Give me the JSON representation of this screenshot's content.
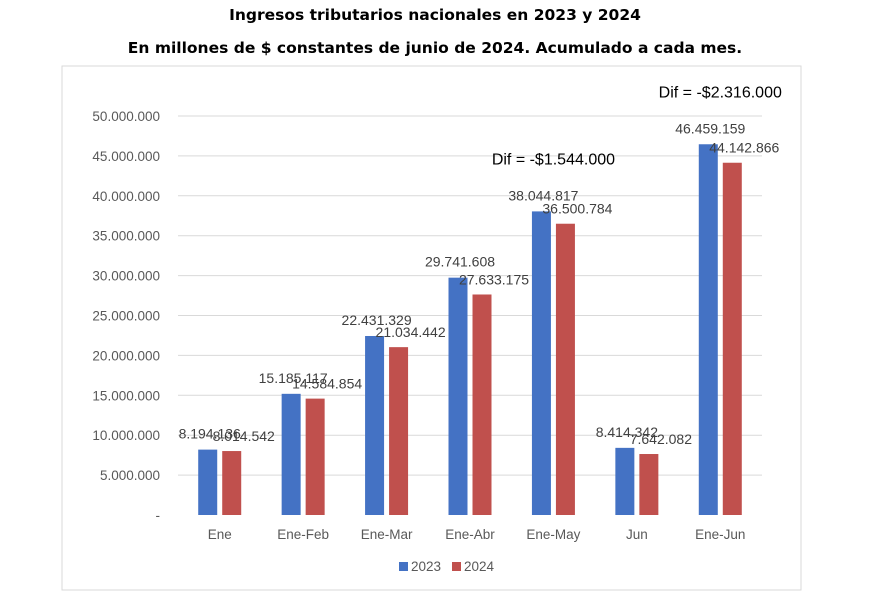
{
  "chart_data": {
    "type": "bar",
    "title": "Ingresos tributarios nacionales en 2023 y 2024",
    "subtitle": "En millones de $ constantes de junio de 2024. Acumulado a cada mes.",
    "xlabel": "",
    "ylabel": "",
    "ylim": [
      0,
      50000000
    ],
    "yticks": [
      {
        "value": 0,
        "label": "-"
      },
      {
        "value": 5000000,
        "label": "5.000.000"
      },
      {
        "value": 10000000,
        "label": "10.000.000"
      },
      {
        "value": 15000000,
        "label": "15.000.000"
      },
      {
        "value": 20000000,
        "label": "20.000.000"
      },
      {
        "value": 25000000,
        "label": "25.000.000"
      },
      {
        "value": 30000000,
        "label": "30.000.000"
      },
      {
        "value": 35000000,
        "label": "35.000.000"
      },
      {
        "value": 40000000,
        "label": "40.000.000"
      },
      {
        "value": 45000000,
        "label": "45.000.000"
      },
      {
        "value": 50000000,
        "label": "50.000.000"
      }
    ],
    "grid": true,
    "categories": [
      "Ene",
      "Ene-Feb",
      "Ene-Mar",
      "Ene-Abr",
      "Ene-May",
      "Jun",
      "Ene-Jun"
    ],
    "series": [
      {
        "name": "2023",
        "color": "#4472C4",
        "values": [
          8194136,
          15185117,
          22431329,
          29741608,
          38044817,
          8414342,
          46459159
        ],
        "labels": [
          "8.194.136",
          "15.185.117",
          "22.431.329",
          "29.741.608",
          "38.044.817",
          "8.414.342",
          "46.459.159"
        ]
      },
      {
        "name": "2024",
        "color": "#C0504D",
        "values": [
          8014542,
          14584854,
          21034442,
          27633175,
          36500784,
          7642082,
          44142866
        ],
        "labels": [
          "8.014.542",
          "14.584.854",
          "21.034.442",
          "27.633.175",
          "36.500.784",
          "7.642.082",
          "44.142.866"
        ]
      }
    ],
    "annotations": [
      {
        "text": "Dif = -$1.544.000",
        "category": "Ene-May"
      },
      {
        "text": "Dif = -$2.316.000",
        "category": "Ene-Jun"
      }
    ],
    "legend_position": "bottom-center"
  }
}
